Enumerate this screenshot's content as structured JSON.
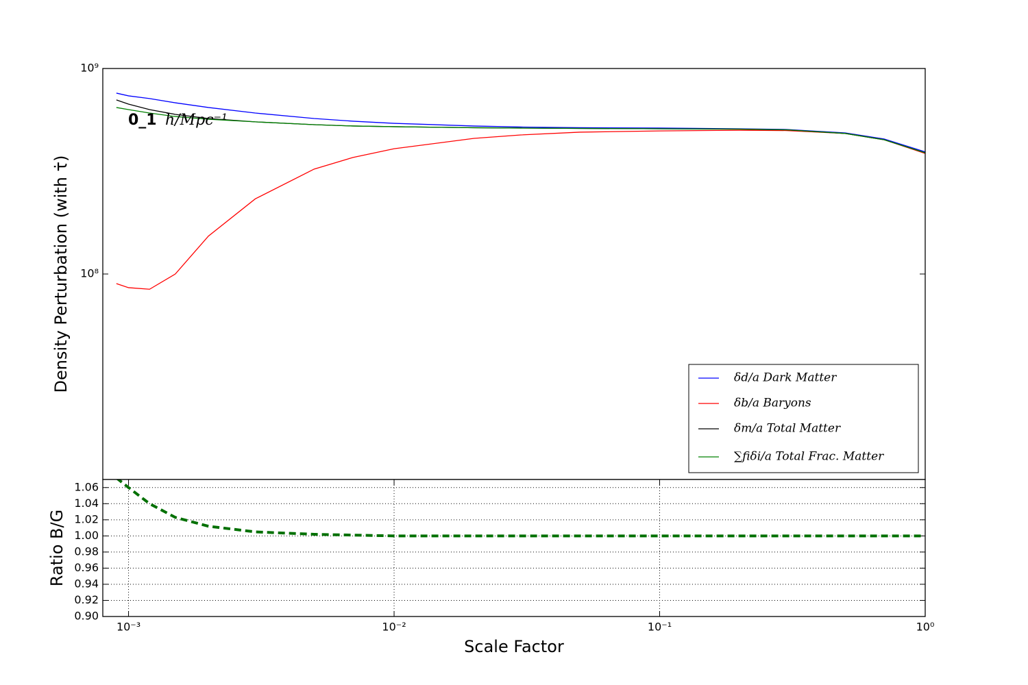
{
  "chart_data": [
    {
      "type": "line",
      "ylabel": "Density Perturbation (with τ̇)",
      "xscale": "log",
      "yscale": "log",
      "xlim": [
        0.0008,
        1
      ],
      "ylim": [
        10000000,
        1000000000
      ],
      "yticks": [
        {
          "value": 100000000,
          "label": "10⁸"
        },
        {
          "value": 1000000000,
          "label": "10⁹"
        }
      ],
      "legend": "lower right",
      "annotation": {
        "text": "0_1",
        "unit": "h/Mpc⁻¹"
      },
      "x": [
        0.0009,
        0.001,
        0.0012,
        0.0015,
        0.002,
        0.003,
        0.005,
        0.007,
        0.01,
        0.02,
        0.03,
        0.05,
        0.1,
        0.2,
        0.3,
        0.5,
        0.7,
        1
      ],
      "series": [
        {
          "name": "δd/a Dark Matter",
          "color": "#0000ff",
          "values": [
            759000000,
            736000000,
            714000000,
            681000000,
            646000000,
            607000000,
            571000000,
            554000000,
            541000000,
            525000000,
            519000000,
            515000000,
            513000000,
            509000000,
            505000000,
            486000000,
            454000000,
            393000000
          ]
        },
        {
          "name": "δb/a Baryons",
          "color": "#ff0000",
          "values": [
            89800000,
            85800000,
            84300000,
            100000000,
            153000000,
            232000000,
            324000000,
            369000000,
            407000000,
            457000000,
            475000000,
            490000000,
            497000000,
            501000000,
            499000000,
            483000000,
            450000000,
            386000000
          ]
        },
        {
          "name": "δm/a Total Matter",
          "color": "#000000",
          "values": [
            703000000,
            671000000,
            631000000,
            598000000,
            571000000,
            550000000,
            533000000,
            525000000,
            521000000,
            515000000,
            513000000,
            511000000,
            509000000,
            507000000,
            503000000,
            483000000,
            450000000,
            389000000
          ]
        },
        {
          "name": "∑fiδi/a Total Frac. Matter",
          "color": "#008000",
          "values": [
            646000000,
            631000000,
            607000000,
            584000000,
            566000000,
            550000000,
            533000000,
            525000000,
            521000000,
            515000000,
            513000000,
            511000000,
            509000000,
            507000000,
            503000000,
            483000000,
            450000000,
            389000000
          ]
        }
      ]
    },
    {
      "type": "line",
      "xlabel": "Scale Factor",
      "ylabel": "Ratio B/G",
      "xscale": "log",
      "grid": true,
      "xlim": [
        0.0008,
        1
      ],
      "ylim": [
        0.9,
        1.07
      ],
      "xticks": [
        {
          "value": 0.001,
          "label": "10⁻³"
        },
        {
          "value": 0.01,
          "label": "10⁻²"
        },
        {
          "value": 0.1,
          "label": "10⁻¹"
        },
        {
          "value": 1,
          "label": "10⁰"
        }
      ],
      "yticks": [
        {
          "value": 0.9,
          "label": "0.90"
        },
        {
          "value": 0.92,
          "label": "0.92"
        },
        {
          "value": 0.94,
          "label": "0.94"
        },
        {
          "value": 0.96,
          "label": "0.96"
        },
        {
          "value": 0.98,
          "label": "0.98"
        },
        {
          "value": 1,
          "label": "1.00"
        },
        {
          "value": 1.02,
          "label": "1.02"
        },
        {
          "value": 1.04,
          "label": "1.04"
        },
        {
          "value": 1.06,
          "label": "1.06"
        }
      ],
      "x": [
        0.0009,
        0.001,
        0.0012,
        0.0015,
        0.002,
        0.003,
        0.005,
        0.007,
        0.01,
        0.02,
        0.03,
        0.05,
        0.1,
        0.2,
        0.3,
        0.5,
        0.7,
        1
      ],
      "series": [
        {
          "color": "#007000",
          "linestyle": "dashed",
          "values": [
            1.072,
            1.06,
            1.04,
            1.023,
            1.012,
            1.005,
            1.002,
            1.001,
            1,
            1,
            1,
            1,
            1,
            1,
            1,
            1,
            1,
            1
          ]
        }
      ]
    }
  ]
}
